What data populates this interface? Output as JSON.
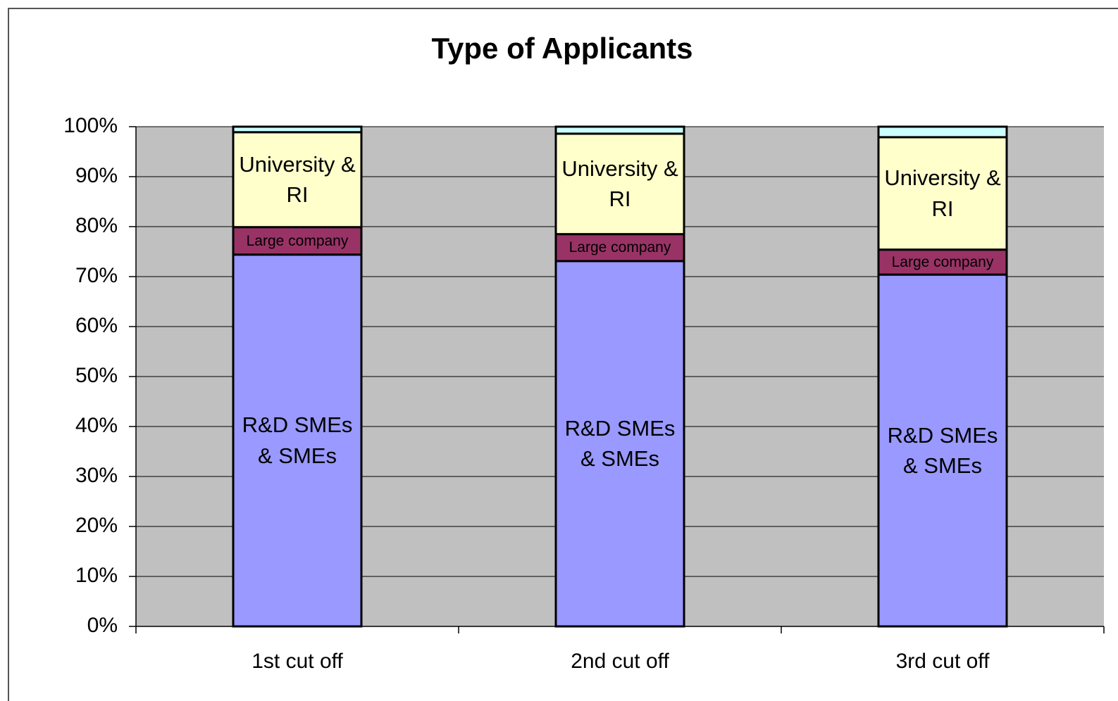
{
  "chart_data": {
    "type": "stacked_bar",
    "title": "Type of Applicants",
    "categories": [
      "1st cut off",
      "2nd cut off",
      "3rd cut off"
    ],
    "series": [
      {
        "name": "R&D SMEs & SMEs",
        "color": "#9999ff",
        "values": [
          74.4,
          73.1,
          70.4
        ]
      },
      {
        "name": "Large company",
        "color": "#993366",
        "values": [
          5.5,
          5.4,
          5.0
        ]
      },
      {
        "name": "University & RI",
        "color": "#ffffcc",
        "values": [
          19.0,
          20.1,
          22.5
        ]
      },
      {
        "color": "#ccffff",
        "values": [
          1.1,
          1.4,
          2.1
        ]
      }
    ],
    "ylim": [
      0,
      100
    ],
    "yticks": [
      {
        "value": 0,
        "label": "0%"
      },
      {
        "value": 10,
        "label": "10%"
      },
      {
        "value": 20,
        "label": "20%"
      },
      {
        "value": 30,
        "label": "30%"
      },
      {
        "value": 40,
        "label": "40%"
      },
      {
        "value": 50,
        "label": "50%"
      },
      {
        "value": 60,
        "label": "60%"
      },
      {
        "value": 70,
        "label": "70%"
      },
      {
        "value": 80,
        "label": "80%"
      },
      {
        "value": 90,
        "label": "90%"
      },
      {
        "value": 100,
        "label": "100%"
      }
    ],
    "grid": true,
    "plot_background": "#c0c0c0"
  }
}
